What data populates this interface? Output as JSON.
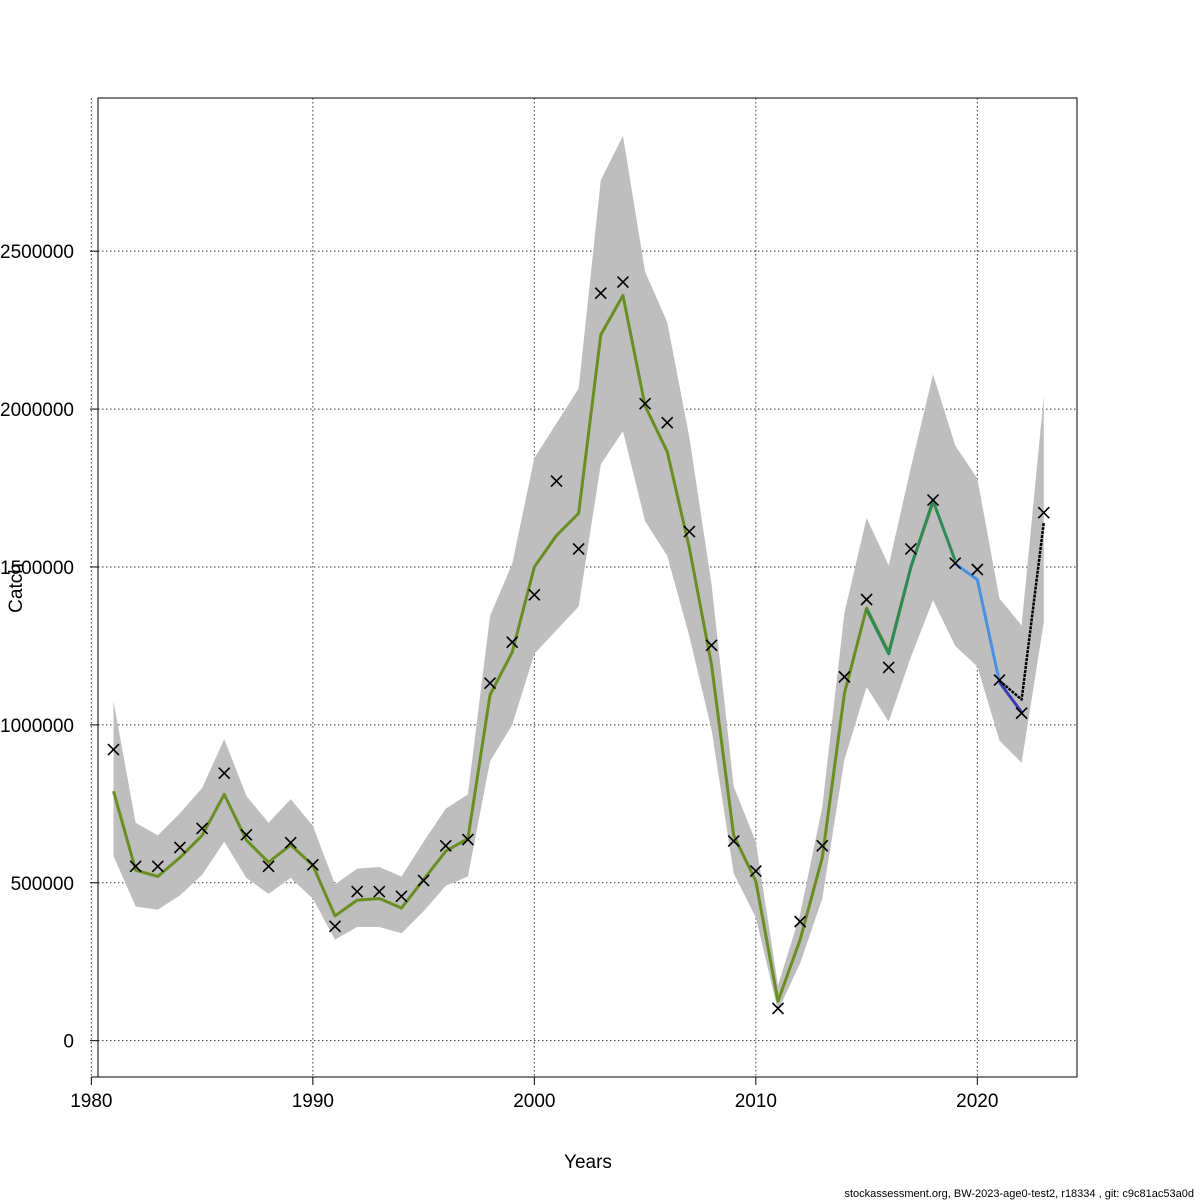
{
  "chart_data": {
    "type": "line",
    "title": "",
    "xlabel": "Years",
    "ylabel": "Catch",
    "xlim": [
      1980.3,
      2024.5
    ],
    "ylim": [
      -115000,
      2985000
    ],
    "x_ticks": [
      1980,
      1990,
      2000,
      2010,
      2020
    ],
    "x_tick_labels": [
      "1980",
      "1990",
      "2000",
      "2010",
      "2020"
    ],
    "y_ticks": [
      0,
      500000,
      1000000,
      1500000,
      2000000,
      2500000
    ],
    "y_tick_labels": [
      "0",
      "500000",
      "1000000",
      "1500000",
      "2000000",
      "2500000"
    ],
    "grid": true,
    "confidence_band": {
      "color": "#bebebe",
      "x": [
        1981,
        1982,
        1983,
        1984,
        1985,
        1986,
        1987,
        1988,
        1989,
        1990,
        1991,
        1992,
        1993,
        1994,
        1995,
        1996,
        1997,
        1998,
        1999,
        2000,
        2001,
        2002,
        2003,
        2004,
        2005,
        2006,
        2007,
        2008,
        2009,
        2010,
        2011,
        2012,
        2013,
        2014,
        2015,
        2016,
        2017,
        2018,
        2019,
        2020,
        2021,
        2022,
        2023
      ],
      "lower": [
        585000,
        425000,
        415000,
        460000,
        525000,
        630000,
        515000,
        465000,
        515000,
        450000,
        320000,
        360000,
        360000,
        340000,
        410000,
        490000,
        520000,
        885000,
        1000000,
        1225000,
        1300000,
        1375000,
        1825000,
        1930000,
        1645000,
        1535000,
        1280000,
        985000,
        530000,
        390000,
        95000,
        245000,
        450000,
        890000,
        1120000,
        1010000,
        1215000,
        1395000,
        1250000,
        1185000,
        950000,
        880000,
        1325000
      ],
      "upper": [
        1075000,
        690000,
        650000,
        720000,
        800000,
        955000,
        775000,
        690000,
        765000,
        680000,
        495000,
        545000,
        550000,
        520000,
        630000,
        735000,
        780000,
        1345000,
        1510000,
        1845000,
        1955000,
        2065000,
        2725000,
        2865000,
        2435000,
        2275000,
        1910000,
        1445000,
        805000,
        630000,
        175000,
        400000,
        740000,
        1355000,
        1655000,
        1505000,
        1815000,
        2110000,
        1885000,
        1780000,
        1400000,
        1315000,
        2040000
      ]
    },
    "series": [
      {
        "color": "#6b8e23",
        "x": [
          1981,
          1982,
          1983,
          1984,
          1985,
          1986,
          1987,
          1988,
          1989,
          1990,
          1991,
          1992,
          1993,
          1994,
          1995,
          1996,
          1997,
          1998,
          1999,
          2000,
          2001,
          2002,
          2003,
          2004,
          2005,
          2006,
          2007,
          2008,
          2009,
          2010,
          2011,
          2012,
          2013,
          2014,
          2015,
          2016,
          2017,
          2018
        ],
        "y": [
          790000,
          540000,
          520000,
          580000,
          650000,
          780000,
          635000,
          565000,
          620000,
          555000,
          395000,
          445000,
          450000,
          420000,
          510000,
          600000,
          640000,
          1095000,
          1230000,
          1500000,
          1600000,
          1670000,
          2235000,
          2360000,
          2010000,
          1865000,
          1560000,
          1190000,
          650000,
          505000,
          125000,
          320000,
          580000,
          1100000,
          1370000,
          1230000,
          1500000,
          1705000
        ]
      },
      {
        "color": "#2e8b57",
        "x": [
          2015,
          2016,
          2017,
          2018,
          2019
        ],
        "y": [
          1365000,
          1225000,
          1500000,
          1710000,
          1520000
        ]
      },
      {
        "color": "#4a90e2",
        "x": [
          2019,
          2020,
          2021
        ],
        "y": [
          1510000,
          1460000,
          1135000
        ]
      },
      {
        "color": "#3b3bb0",
        "x": [
          2021,
          2022
        ],
        "y": [
          1135000,
          1040000
        ]
      },
      {
        "color": "#000000",
        "dashed": true,
        "x": [
          2021,
          2022,
          2023
        ],
        "y": [
          1140000,
          1080000,
          1640000
        ]
      }
    ],
    "observed": {
      "marker": "x",
      "x": [
        1981,
        1982,
        1983,
        1984,
        1985,
        1986,
        1987,
        1988,
        1989,
        1990,
        1991,
        1992,
        1993,
        1994,
        1995,
        1996,
        1997,
        1998,
        1999,
        2000,
        2001,
        2002,
        2003,
        2004,
        2005,
        2006,
        2007,
        2008,
        2009,
        2010,
        2011,
        2012,
        2013,
        2014,
        2015,
        2016,
        2017,
        2018,
        2019,
        2020,
        2021,
        2022,
        2023
      ],
      "y": [
        922000,
        552000,
        552000,
        612000,
        672000,
        847000,
        652000,
        552000,
        627000,
        557000,
        362000,
        472000,
        472000,
        457000,
        507000,
        617000,
        637000,
        1132000,
        1262000,
        1412000,
        1772000,
        1557000,
        2367000,
        2402000,
        2017000,
        1957000,
        1612000,
        1252000,
        632000,
        537000,
        102000,
        377000,
        617000,
        1152000,
        1397000,
        1182000,
        1557000,
        1712000,
        1512000,
        1492000,
        1142000,
        1037000,
        1672000
      ]
    }
  },
  "footer_text": "stockassessment.org, BW-2023-age0-test2, r18334 , git: c9c81ac53a0d"
}
